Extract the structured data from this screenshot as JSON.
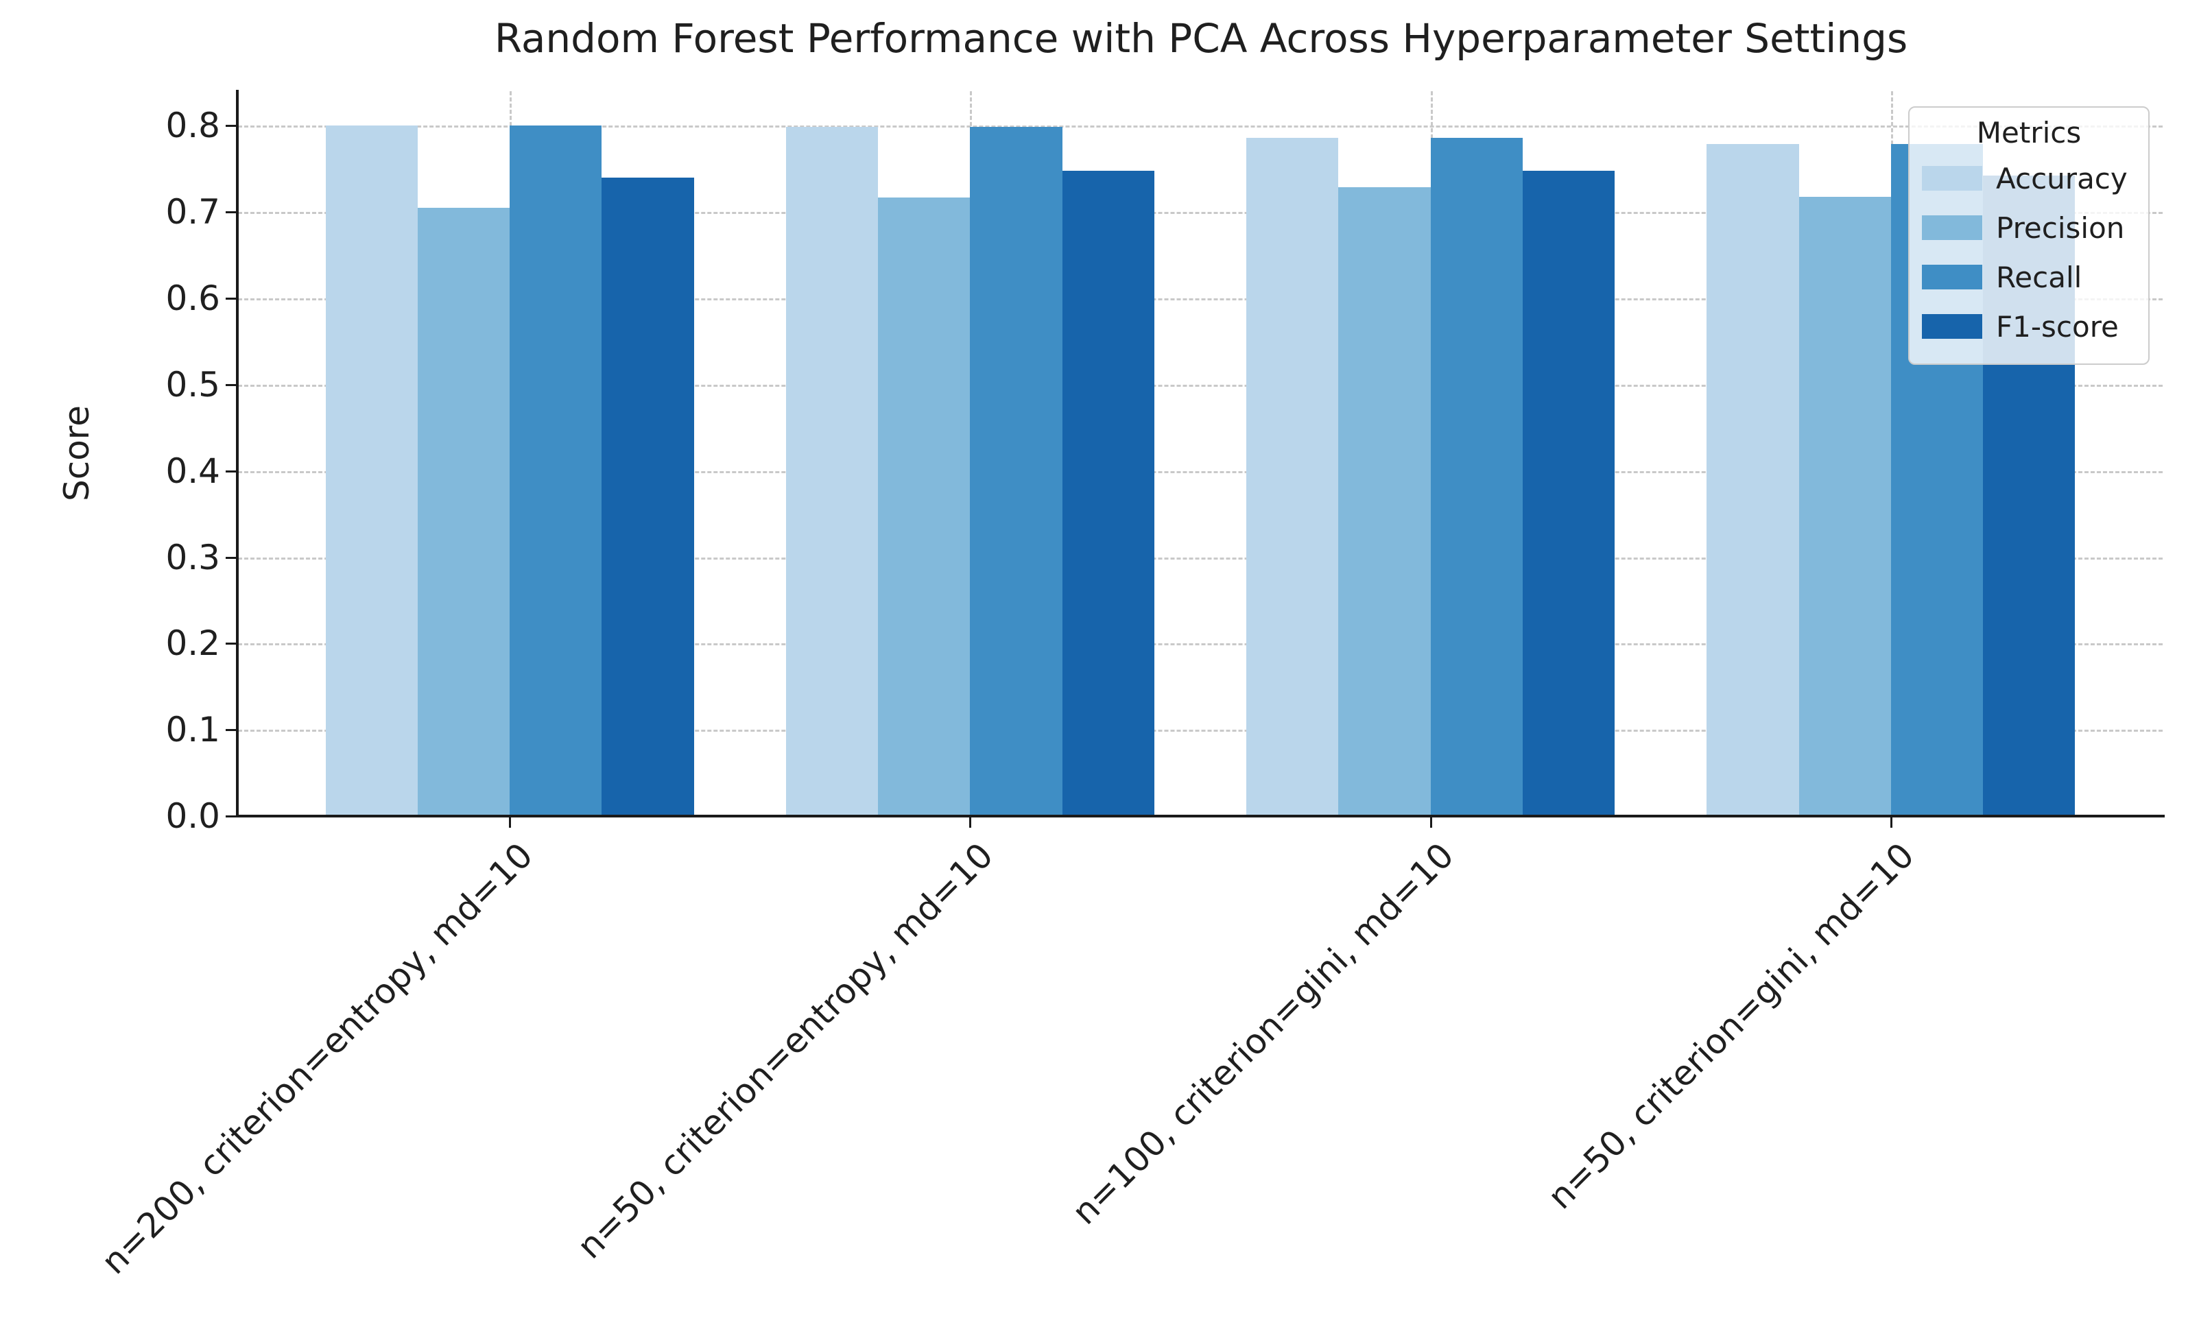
{
  "chart_data": {
    "type": "bar",
    "title": "Random Forest Performance with PCA Across Hyperparameter Settings",
    "ylabel": "Score",
    "xlabel": "",
    "legend_title": "Metrics",
    "legend_position": "upper right",
    "categories": [
      "n=200, criterion=entropy, md=10",
      "n=50, criterion=entropy, md=10",
      "n=100, criterion=gini, md=10",
      "n=50, criterion=gini, md=10"
    ],
    "series": [
      {
        "name": "Accuracy",
        "color": "#bad6eb",
        "values": [
          0.8,
          0.799,
          0.786,
          0.779
        ]
      },
      {
        "name": "Precision",
        "color": "#82b9db",
        "values": [
          0.705,
          0.717,
          0.729,
          0.718
        ]
      },
      {
        "name": "Recall",
        "color": "#3f8ec5",
        "values": [
          0.8,
          0.799,
          0.786,
          0.779
        ]
      },
      {
        "name": "F1-score",
        "color": "#1764ab",
        "values": [
          0.74,
          0.748,
          0.748,
          0.742
        ]
      }
    ],
    "yticks": [
      0.0,
      0.1,
      0.2,
      0.3,
      0.4,
      0.5,
      0.6,
      0.7,
      0.8
    ],
    "ylim": [
      0,
      0.84
    ],
    "xlim": [
      -0.59,
      3.59
    ],
    "bar_width": 0.2,
    "grid": true,
    "grid_style": "dashed",
    "grid_color": "#c9c9c9",
    "text_color": "#1f1f1f",
    "spine_color": "#1a1a1a",
    "background_color": "#ffffff"
  }
}
